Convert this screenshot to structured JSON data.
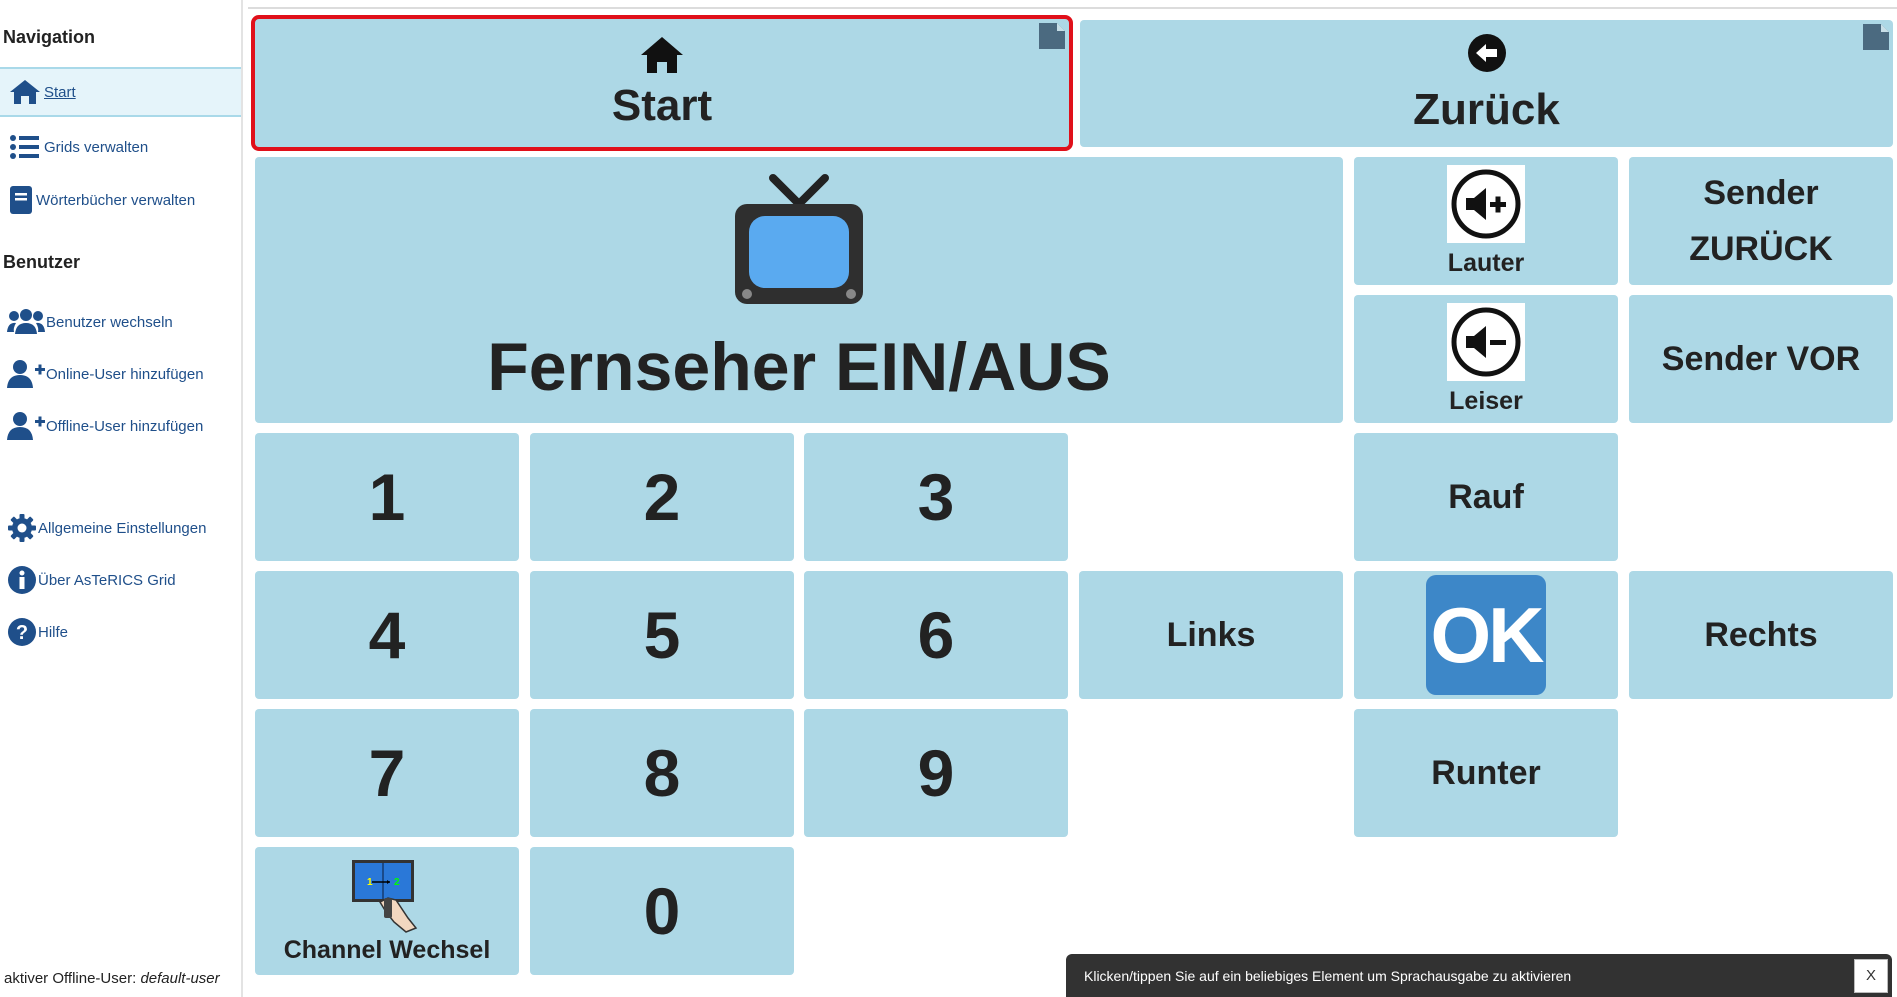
{
  "sidebar": {
    "nav_heading": "Navigation",
    "nav_items": [
      {
        "label": "Start",
        "icon": "home-icon"
      },
      {
        "label": "Grids verwalten",
        "icon": "list-icon"
      },
      {
        "label": "Wörterbücher verwalten",
        "icon": "book-icon"
      }
    ],
    "user_heading": "Benutzer",
    "user_items": [
      {
        "label": "Benutzer wechseln",
        "icon": "users-icon"
      },
      {
        "label": "Online-User hinzufügen",
        "icon": "user-plus-icon"
      },
      {
        "label": "Offline-User hinzufügen",
        "icon": "user-plus-icon"
      }
    ],
    "misc_items": [
      {
        "label": "Allgemeine Einstellungen",
        "icon": "gear-icon"
      },
      {
        "label": "Über AsTeRICS Grid",
        "icon": "info-icon"
      },
      {
        "label": "Hilfe",
        "icon": "help-icon"
      }
    ],
    "footer_prefix": "aktiver Offline-User: ",
    "footer_user": "default-user"
  },
  "grid": {
    "start": "Start",
    "back": "Zurück",
    "tv": "Fernseher EIN/AUS",
    "louder": "Lauter",
    "quieter": "Leiser",
    "sender_back_1": "Sender",
    "sender_back_2": "ZURÜCK",
    "sender_next": "Sender VOR",
    "up": "Rauf",
    "down": "Runter",
    "left": "Links",
    "right": "Rechts",
    "ok": "OK",
    "channel": "Channel Wechsel",
    "numbers": [
      "1",
      "2",
      "3",
      "4",
      "5",
      "6",
      "7",
      "8",
      "9",
      "0"
    ]
  },
  "toast": {
    "text": "Klicken/tippen Sie auf ein beliebiges Element um Sprachausgabe zu aktivieren",
    "close": "X"
  },
  "colors": {
    "cell_bg": "#add8e6",
    "selected_border": "#e0101a",
    "ok_tile": "#3d87c8",
    "sidebar_link": "#1f4f8a"
  }
}
